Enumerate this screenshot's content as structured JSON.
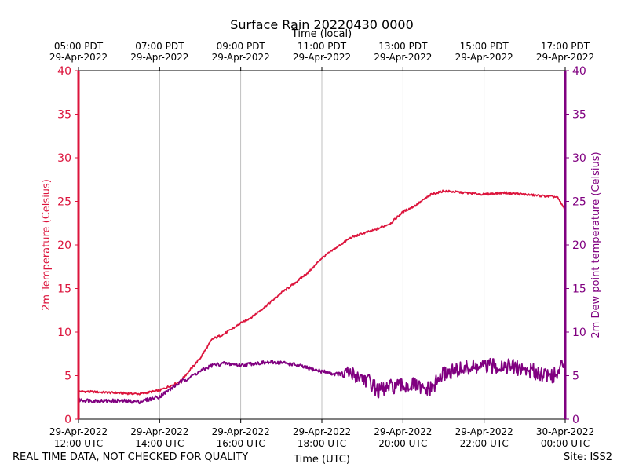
{
  "chart_data": {
    "type": "line",
    "title": "Surface Rain 20220430 0000",
    "top_axis_label": "Time (local)",
    "xlabel": "Time (UTC)",
    "ylabel_left": "2m Temperature (Celsius)",
    "ylabel_right": "2m Dew point temperature (Celsius)",
    "x_unit": "hours since 29-Apr-2022 12:00 UTC",
    "xlim": [
      0,
      12
    ],
    "ylim": [
      0,
      40
    ],
    "y_ticks": [
      "0",
      "5",
      "10",
      "15",
      "20",
      "25",
      "30",
      "35",
      "40"
    ],
    "bottom_ticks": [
      {
        "x": 0,
        "line1": "29-Apr-2022",
        "line2": "12:00 UTC"
      },
      {
        "x": 2,
        "line1": "29-Apr-2022",
        "line2": "14:00 UTC"
      },
      {
        "x": 4,
        "line1": "29-Apr-2022",
        "line2": "16:00 UTC"
      },
      {
        "x": 6,
        "line1": "29-Apr-2022",
        "line2": "18:00 UTC"
      },
      {
        "x": 8,
        "line1": "29-Apr-2022",
        "line2": "20:00 UTC"
      },
      {
        "x": 10,
        "line1": "29-Apr-2022",
        "line2": "22:00 UTC"
      },
      {
        "x": 12,
        "line1": "30-Apr-2022",
        "line2": "00:00 UTC"
      }
    ],
    "top_ticks": [
      {
        "x": 0,
        "line1": "05:00 PDT",
        "line2": "29-Apr-2022"
      },
      {
        "x": 2,
        "line1": "07:00 PDT",
        "line2": "29-Apr-2022"
      },
      {
        "x": 4,
        "line1": "09:00 PDT",
        "line2": "29-Apr-2022"
      },
      {
        "x": 6,
        "line1": "11:00 PDT",
        "line2": "29-Apr-2022"
      },
      {
        "x": 8,
        "line1": "13:00 PDT",
        "line2": "29-Apr-2022"
      },
      {
        "x": 10,
        "line1": "15:00 PDT",
        "line2": "29-Apr-2022"
      },
      {
        "x": 12,
        "line1": "17:00 PDT",
        "line2": "29-Apr-2022"
      }
    ],
    "grid": "vertical",
    "series": [
      {
        "name": "2m Temperature (Celsius)",
        "axis": "left",
        "color": "#dc143c",
        "x": [
          0,
          0.5,
          1,
          1.5,
          2,
          2.5,
          3,
          3.3,
          3.6,
          4,
          4.3,
          4.7,
          5,
          5.3,
          5.7,
          6,
          6.3,
          6.7,
          7,
          7.3,
          7.7,
          8,
          8.3,
          8.7,
          9,
          9.5,
          10,
          10.5,
          11,
          11.5,
          11.8,
          12
        ],
        "values": [
          3.2,
          3.1,
          3.0,
          2.9,
          3.3,
          4.3,
          7.0,
          9.2,
          9.8,
          11.0,
          11.8,
          13.3,
          14.5,
          15.5,
          17.0,
          18.5,
          19.5,
          20.8,
          21.3,
          21.7,
          22.5,
          23.8,
          24.5,
          25.8,
          26.2,
          26.0,
          25.8,
          26.0,
          25.8,
          25.6,
          25.5,
          24.0
        ]
      },
      {
        "name": "2m Dew point temperature (Celsius)",
        "axis": "right",
        "color": "#800080",
        "x": [
          0,
          0.5,
          1,
          1.5,
          2,
          2.5,
          3,
          3.3,
          3.6,
          4,
          4.3,
          4.7,
          5,
          5.3,
          5.7,
          6,
          6.3,
          6.7,
          7,
          7.2,
          7.4,
          7.7,
          8,
          8.3,
          8.5,
          8.7,
          9,
          9.5,
          10,
          10.5,
          11,
          11.5,
          11.8,
          12
        ],
        "values": [
          2.2,
          2.1,
          2.1,
          2.0,
          2.6,
          4.2,
          5.5,
          6.2,
          6.4,
          6.2,
          6.4,
          6.5,
          6.5,
          6.3,
          5.8,
          5.5,
          5.2,
          5.2,
          4.8,
          4.2,
          3.2,
          3.7,
          3.8,
          3.9,
          3.3,
          3.5,
          5.2,
          5.8,
          6.0,
          6.2,
          5.7,
          5.2,
          5.0,
          7.0
        ]
      }
    ]
  },
  "footer": {
    "qc_note": "REAL TIME DATA, NOT CHECKED FOR QUALITY",
    "site": "Site: ISS2"
  }
}
